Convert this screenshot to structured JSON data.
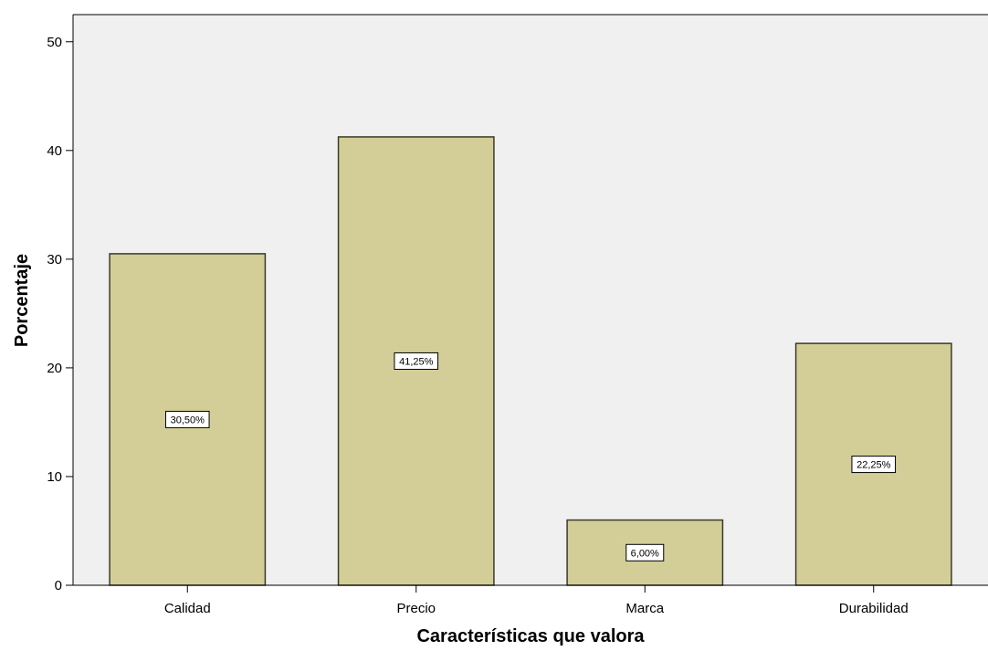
{
  "chart_data": {
    "type": "bar",
    "categories": [
      "Calidad",
      "Precio",
      "Marca",
      "Durabilidad"
    ],
    "values": [
      30.5,
      41.25,
      6.0,
      22.25
    ],
    "data_labels": [
      "30,50%",
      "41,25%",
      "6,00%",
      "22,25%"
    ],
    "xlabel": "Características que valora",
    "ylabel": "Porcentaje",
    "ylim": [
      0,
      52.5
    ],
    "yticks": [
      0,
      10,
      20,
      30,
      40,
      50
    ],
    "grid": false,
    "colors": {
      "bar_fill": "#d3ce97",
      "bar_stroke": "#3a3a2a",
      "plot_background": "#f0f0f0"
    }
  }
}
